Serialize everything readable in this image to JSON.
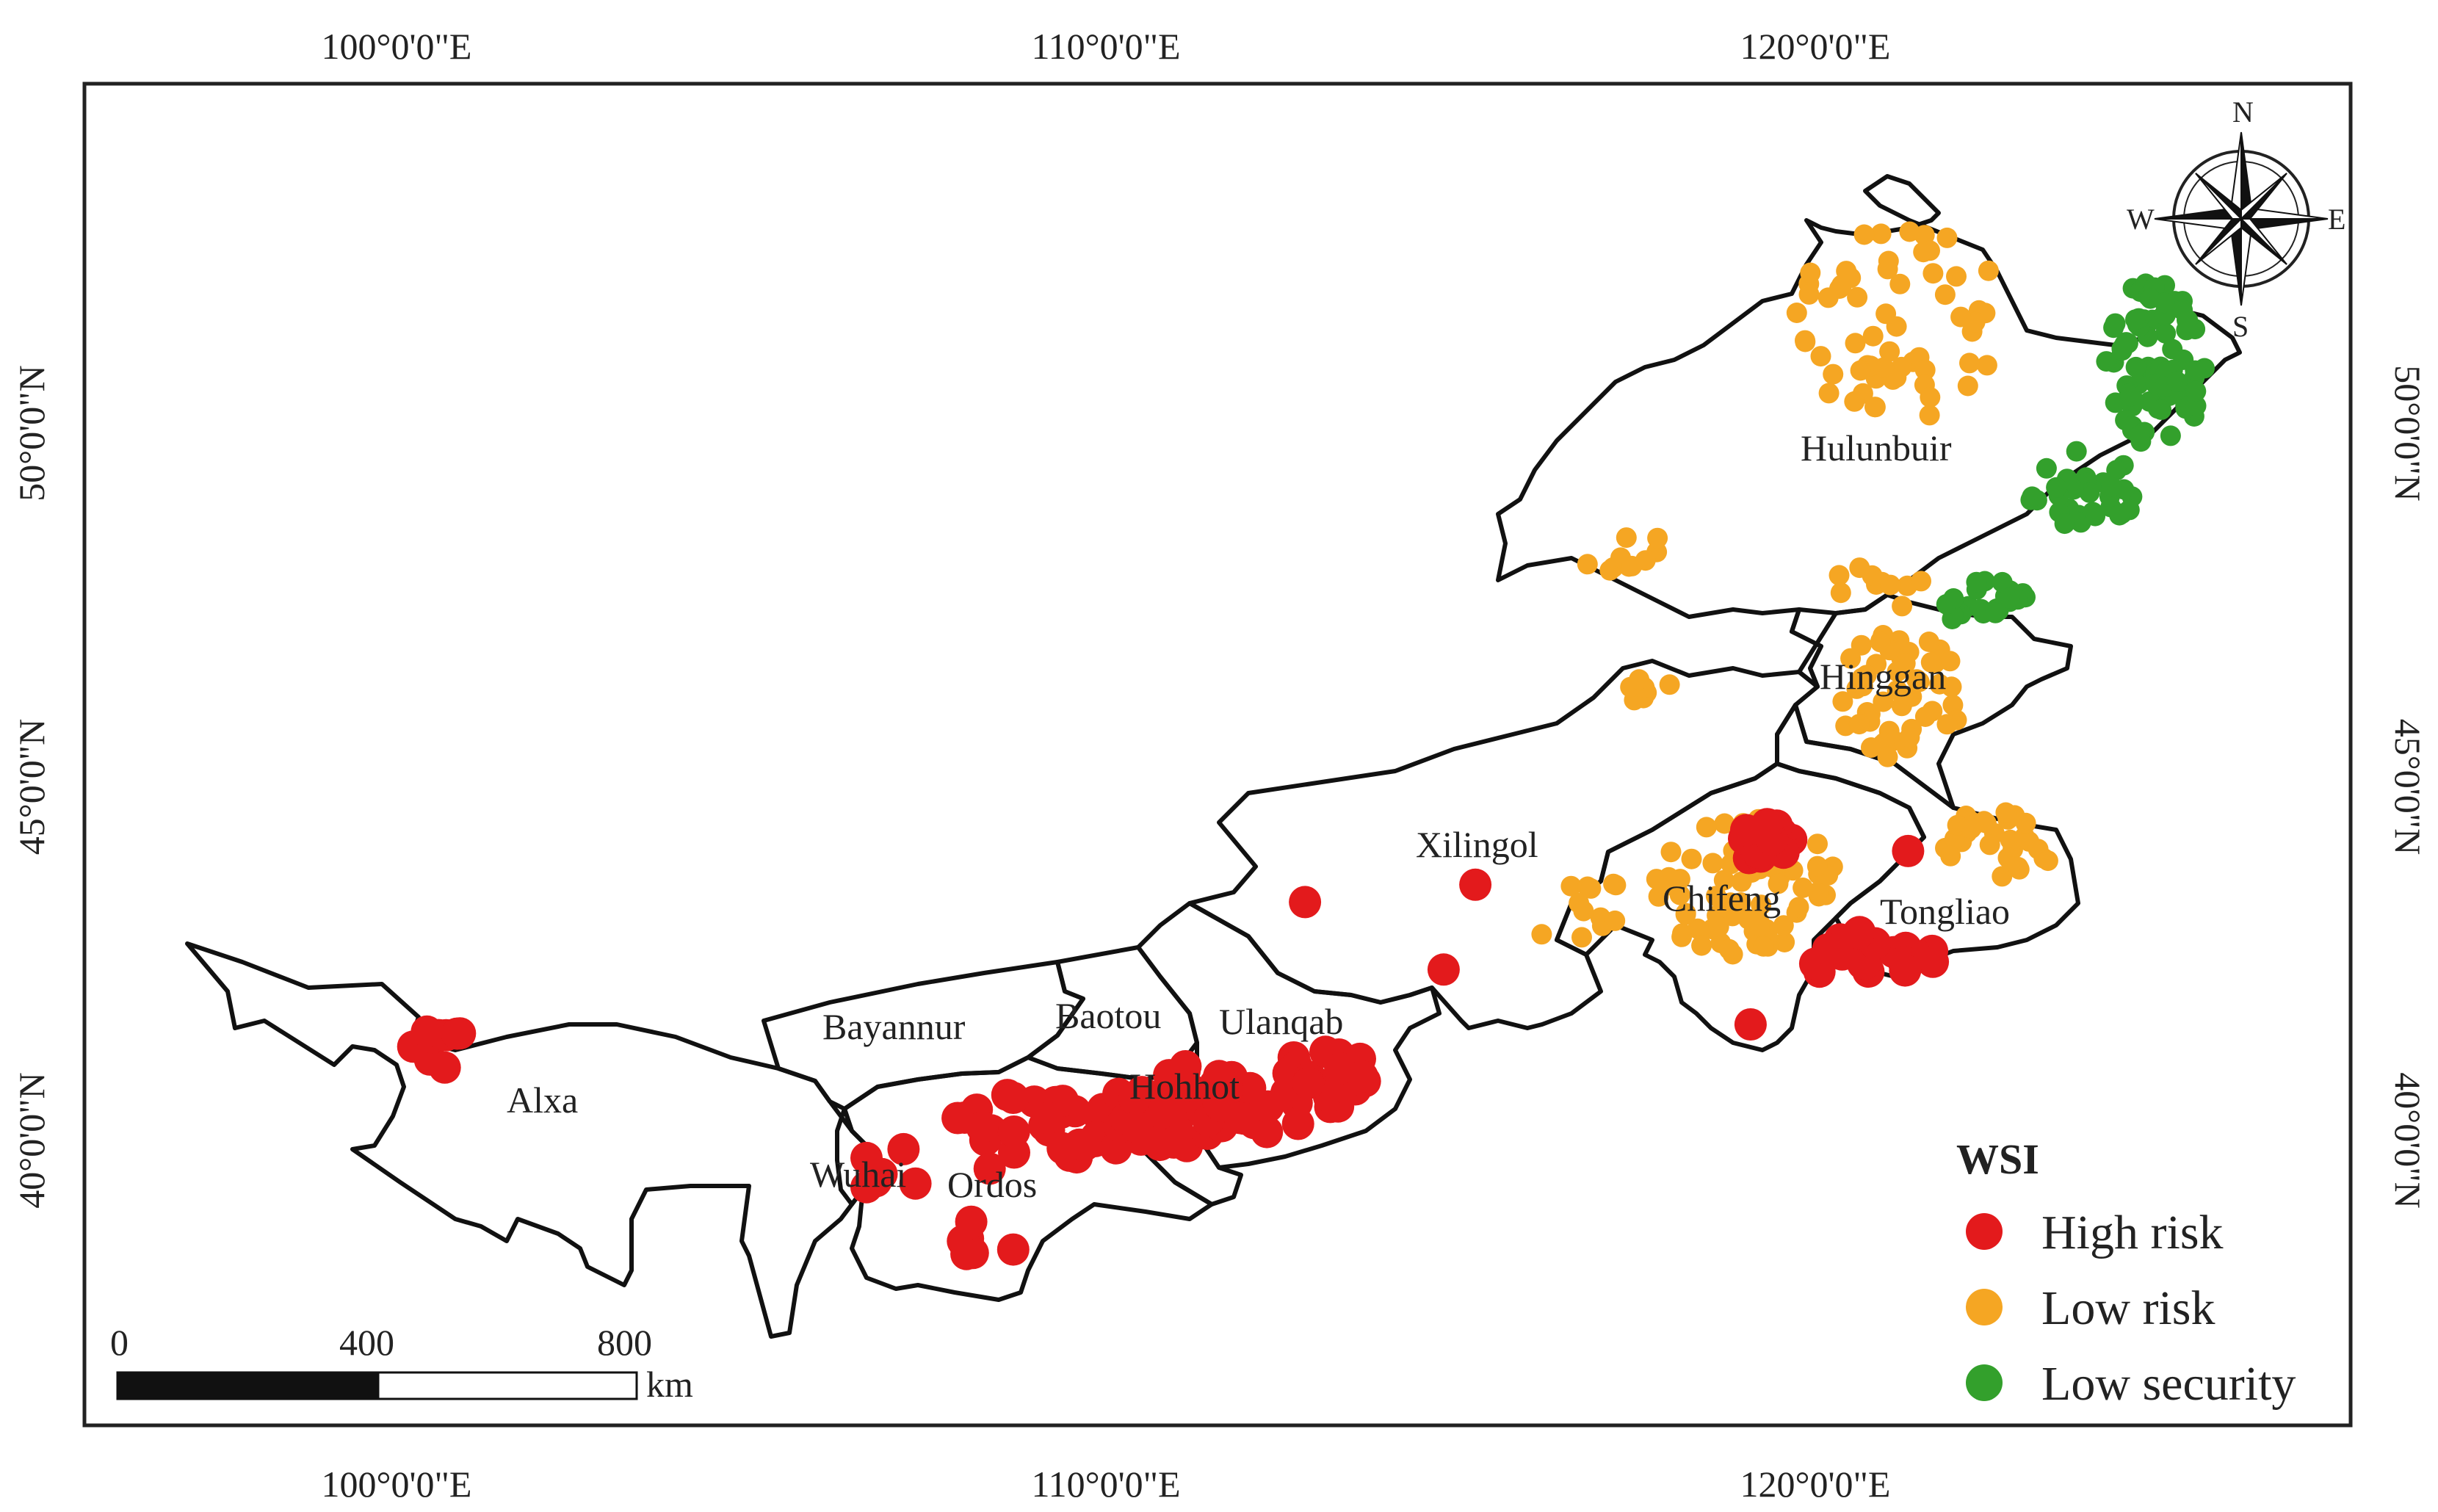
{
  "axes": {
    "longitude_ticks": [
      {
        "value": 100,
        "label": "100°0'0\"E"
      },
      {
        "value": 110,
        "label": "110°0'0\"E"
      },
      {
        "value": 120,
        "label": "120°0'0\"E"
      }
    ],
    "latitude_ticks": [
      {
        "value": 50,
        "label": "50°0'0\"N"
      },
      {
        "value": 45,
        "label": "45°0'0\"N"
      },
      {
        "value": 40,
        "label": "40°0'0\"N"
      }
    ]
  },
  "regions": [
    {
      "id": "hulunbuir",
      "label": "Hulunbuir"
    },
    {
      "id": "hinggan",
      "label": "Hinggan"
    },
    {
      "id": "xilingol",
      "label": "Xilingol"
    },
    {
      "id": "chifeng",
      "label": "Chifeng"
    },
    {
      "id": "tongliao",
      "label": "Tongliao"
    },
    {
      "id": "ulanqab",
      "label": "Ulanqab"
    },
    {
      "id": "baotou",
      "label": "Baotou"
    },
    {
      "id": "hohhot",
      "label": "Hohhot"
    },
    {
      "id": "bayannur",
      "label": "Bayannur"
    },
    {
      "id": "ordos",
      "label": "Ordos"
    },
    {
      "id": "wuhai",
      "label": "Wuhai"
    },
    {
      "id": "alxa",
      "label": "Alxa"
    }
  ],
  "legend": {
    "title": "WSI",
    "items": [
      {
        "id": "high",
        "label": "High risk",
        "color": "#e31a1c"
      },
      {
        "id": "low",
        "label": "Low risk",
        "color": "#f5a623"
      },
      {
        "id": "security",
        "label": "Low security",
        "color": "#33a02c"
      }
    ]
  },
  "compass": {
    "n": "N",
    "s": "S",
    "e": "E",
    "w": "W"
  },
  "scale_bar": {
    "labels": [
      "0",
      "400",
      "800"
    ],
    "unit": "km"
  },
  "point_clusters": [
    {
      "category": "high",
      "lon": 100.7,
      "lat": 41.5,
      "spread": [
        0.6,
        0.5
      ],
      "count": 9
    },
    {
      "category": "high",
      "lon": 109.0,
      "lat": 40.1,
      "spread": [
        1.4,
        0.6
      ],
      "count": 30
    },
    {
      "category": "high",
      "lon": 111.0,
      "lat": 40.5,
      "spread": [
        1.0,
        0.6
      ],
      "count": 40
    },
    {
      "category": "high",
      "lon": 112.4,
      "lat": 40.6,
      "spread": [
        1.0,
        0.6
      ],
      "count": 26
    },
    {
      "category": "high",
      "lon": 108.3,
      "lat": 38.6,
      "spread": [
        0.5,
        0.3
      ],
      "count": 6
    },
    {
      "category": "high",
      "lon": 107.0,
      "lat": 39.5,
      "spread": [
        0.6,
        0.4
      ],
      "count": 6
    },
    {
      "category": "high",
      "lon": 113.3,
      "lat": 41.0,
      "spread": [
        0.6,
        0.4
      ],
      "count": 10
    },
    {
      "category": "high",
      "lon": 119.3,
      "lat": 44.2,
      "spread": [
        0.4,
        0.3
      ],
      "count": 12
    },
    {
      "category": "high",
      "lon": 120.8,
      "lat": 42.6,
      "spread": [
        0.9,
        0.4
      ],
      "count": 20
    },
    {
      "category": "high",
      "lon": 112.8,
      "lat": 43.4,
      "spread": [
        0.05,
        0.05
      ],
      "count": 1
    },
    {
      "category": "high",
      "lon": 115.2,
      "lat": 43.6,
      "spread": [
        0.05,
        0.05
      ],
      "count": 1
    },
    {
      "category": "high",
      "lon": 114.8,
      "lat": 42.4,
      "spread": [
        0.05,
        0.05
      ],
      "count": 1
    },
    {
      "category": "high",
      "lon": 119.1,
      "lat": 41.6,
      "spread": [
        0.05,
        0.05
      ],
      "count": 1
    },
    {
      "category": "high",
      "lon": 121.3,
      "lat": 44.1,
      "spread": [
        0.05,
        0.05
      ],
      "count": 1
    },
    {
      "category": "low",
      "lon": 121.2,
      "lat": 51.6,
      "spread": [
        1.5,
        1.4
      ],
      "count": 60
    },
    {
      "category": "low",
      "lon": 117.8,
      "lat": 48.3,
      "spread": [
        1.3,
        0.3
      ],
      "count": 10
    },
    {
      "category": "low",
      "lon": 121.2,
      "lat": 46.3,
      "spread": [
        0.9,
        0.9
      ],
      "count": 50
    },
    {
      "category": "low",
      "lon": 119.0,
      "lat": 43.6,
      "spread": [
        1.3,
        1.0
      ],
      "count": 70
    },
    {
      "category": "low",
      "lon": 122.6,
      "lat": 44.2,
      "spread": [
        0.8,
        0.5
      ],
      "count": 30
    },
    {
      "category": "low",
      "lon": 116.7,
      "lat": 43.2,
      "spread": [
        0.8,
        0.6
      ],
      "count": 12
    },
    {
      "category": "low",
      "lon": 117.6,
      "lat": 46.5,
      "spread": [
        0.5,
        0.3
      ],
      "count": 8
    },
    {
      "category": "low",
      "lon": 121.0,
      "lat": 47.9,
      "spread": [
        0.8,
        0.4
      ],
      "count": 10
    },
    {
      "category": "security",
      "lon": 124.8,
      "lat": 51.0,
      "spread": [
        0.7,
        1.2
      ],
      "count": 80
    },
    {
      "category": "security",
      "lon": 123.8,
      "lat": 49.2,
      "spread": [
        0.8,
        0.6
      ],
      "count": 30
    },
    {
      "category": "security",
      "lon": 122.4,
      "lat": 47.6,
      "spread": [
        0.6,
        0.4
      ],
      "count": 24
    }
  ]
}
